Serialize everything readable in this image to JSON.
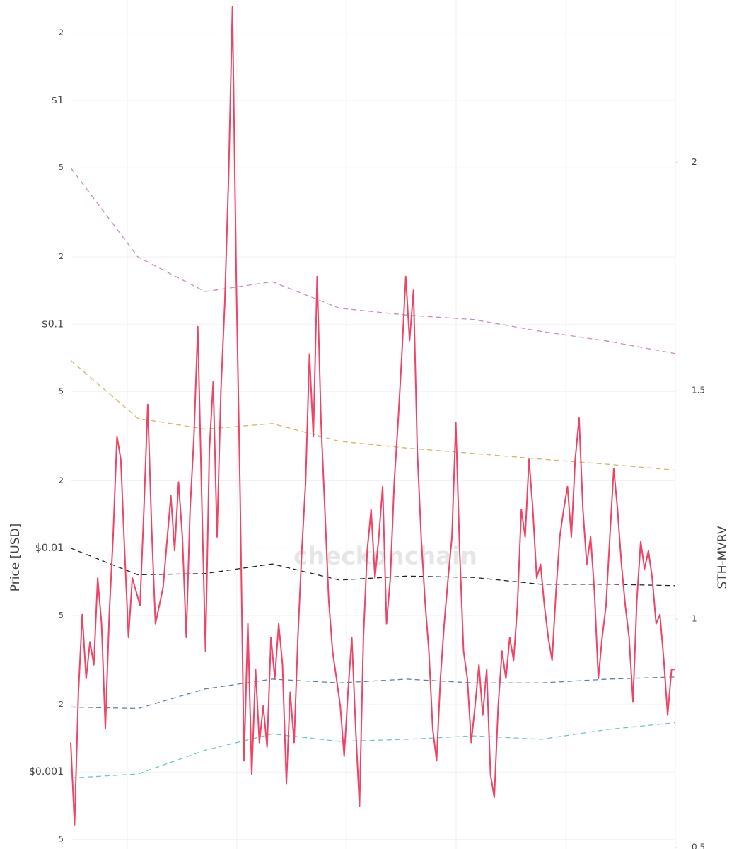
{
  "chart_data": {
    "type": "line",
    "watermark": "checkonchain",
    "ylabel": "Price [USD]",
    "y2label": "STH-MVRV",
    "ylog": true,
    "ylim": [
      0.000453,
      2.81
    ],
    "yticks": [
      {
        "value": 0.0005,
        "label": "5"
      },
      {
        "value": 0.001,
        "label": "$0.001"
      },
      {
        "value": 0.002,
        "label": "2"
      },
      {
        "value": 0.005,
        "label": "5"
      },
      {
        "value": 0.01,
        "label": "$0.01"
      },
      {
        "value": 0.02,
        "label": "2"
      },
      {
        "value": 0.05,
        "label": "5"
      },
      {
        "value": 0.1,
        "label": "$0.1"
      },
      {
        "value": 0.2,
        "label": "2"
      },
      {
        "value": 0.5,
        "label": "5"
      },
      {
        "value": 1,
        "label": "$1"
      },
      2
    ],
    "y2lim": [
      0.497,
      2.355
    ],
    "y2ticks": [
      0.5,
      1,
      1.5,
      2
    ],
    "grid": true,
    "series": [
      {
        "color": "#c98bbf",
        "dash": true,
        "axis": "y",
        "values": [
          0.5,
          0.2,
          0.14,
          0.155,
          0.118,
          0.11,
          0.105,
          0.093,
          0.084,
          0.074
        ]
      },
      {
        "color": "#d2b56a",
        "dash": true,
        "axis": "y",
        "values": [
          0.069,
          0.038,
          0.034,
          0.036,
          0.03,
          0.028,
          0.0265,
          0.025,
          0.0237,
          0.0223
        ]
      },
      {
        "color": "#222222",
        "dash": true,
        "axis": "y",
        "values": [
          0.01,
          0.0076,
          0.0077,
          0.0085,
          0.0072,
          0.0075,
          0.0074,
          0.0069,
          0.0069,
          0.0068
        ]
      },
      {
        "color": "#5d7fa8",
        "dash": true,
        "axis": "y",
        "values": [
          0.00195,
          0.00192,
          0.00235,
          0.0026,
          0.0025,
          0.0026,
          0.0025,
          0.0025,
          0.0026,
          0.00266
        ]
      },
      {
        "color": "#6ec3c9",
        "dash": true,
        "axis": "y",
        "values": [
          0.00094,
          0.00098,
          0.00125,
          0.00148,
          0.00137,
          0.0014,
          0.00145,
          0.0014,
          0.00155,
          0.00166
        ]
      },
      {
        "color": "#ee4466",
        "dash": false,
        "axis": "y2",
        "values": [
          0.73,
          0.55,
          0.84,
          1.01,
          0.87,
          0.95,
          0.9,
          1.09,
          0.99,
          0.76,
          1.01,
          1.18,
          1.4,
          1.35,
          1.15,
          0.96,
          1.09,
          1.06,
          1.03,
          1.24,
          1.47,
          1.2,
          0.99,
          1.03,
          1.07,
          1.17,
          1.27,
          1.15,
          1.3,
          1.18,
          0.96,
          1.24,
          1.4,
          1.64,
          1.27,
          0.93,
          1.37,
          1.52,
          1.18,
          1.5,
          1.69,
          1.97,
          2.34,
          1.74,
          1.27,
          0.69,
          0.99,
          0.66,
          0.89,
          0.73,
          0.81,
          0.72,
          0.96,
          0.87,
          0.99,
          0.9,
          0.64,
          0.84,
          0.73,
          0.96,
          1.15,
          1.3,
          1.58,
          1.4,
          1.75,
          1.43,
          1.24,
          1.04,
          0.93,
          0.87,
          0.81,
          0.7,
          0.84,
          0.96,
          0.76,
          0.59,
          0.96,
          1.15,
          1.24,
          1.09,
          1.18,
          1.29,
          0.99,
          1.09,
          1.3,
          1.43,
          1.58,
          1.75,
          1.61,
          1.72,
          1.37,
          1.18,
          1.04,
          0.93,
          0.76,
          0.69,
          0.87,
          0.99,
          1.09,
          1.18,
          1.43,
          1.15,
          0.93,
          0.87,
          0.73,
          0.81,
          0.9,
          0.79,
          0.89,
          0.66,
          0.61,
          0.81,
          0.93,
          0.87,
          0.96,
          0.91,
          1.03,
          1.24,
          1.18,
          1.35,
          1.24,
          1.09,
          1.12,
          1.03,
          0.96,
          0.91,
          1.06,
          1.18,
          1.24,
          1.29,
          1.18,
          1.35,
          1.44,
          1.24,
          1.12,
          1.18,
          1.06,
          0.87,
          0.96,
          1.03,
          1.18,
          1.33,
          1.24,
          1.12,
          1.03,
          0.96,
          0.82,
          1.04,
          1.17,
          1.11,
          1.15,
          1.09,
          0.99,
          1.01,
          0.91,
          0.79,
          0.89,
          0.89
        ]
      }
    ]
  }
}
